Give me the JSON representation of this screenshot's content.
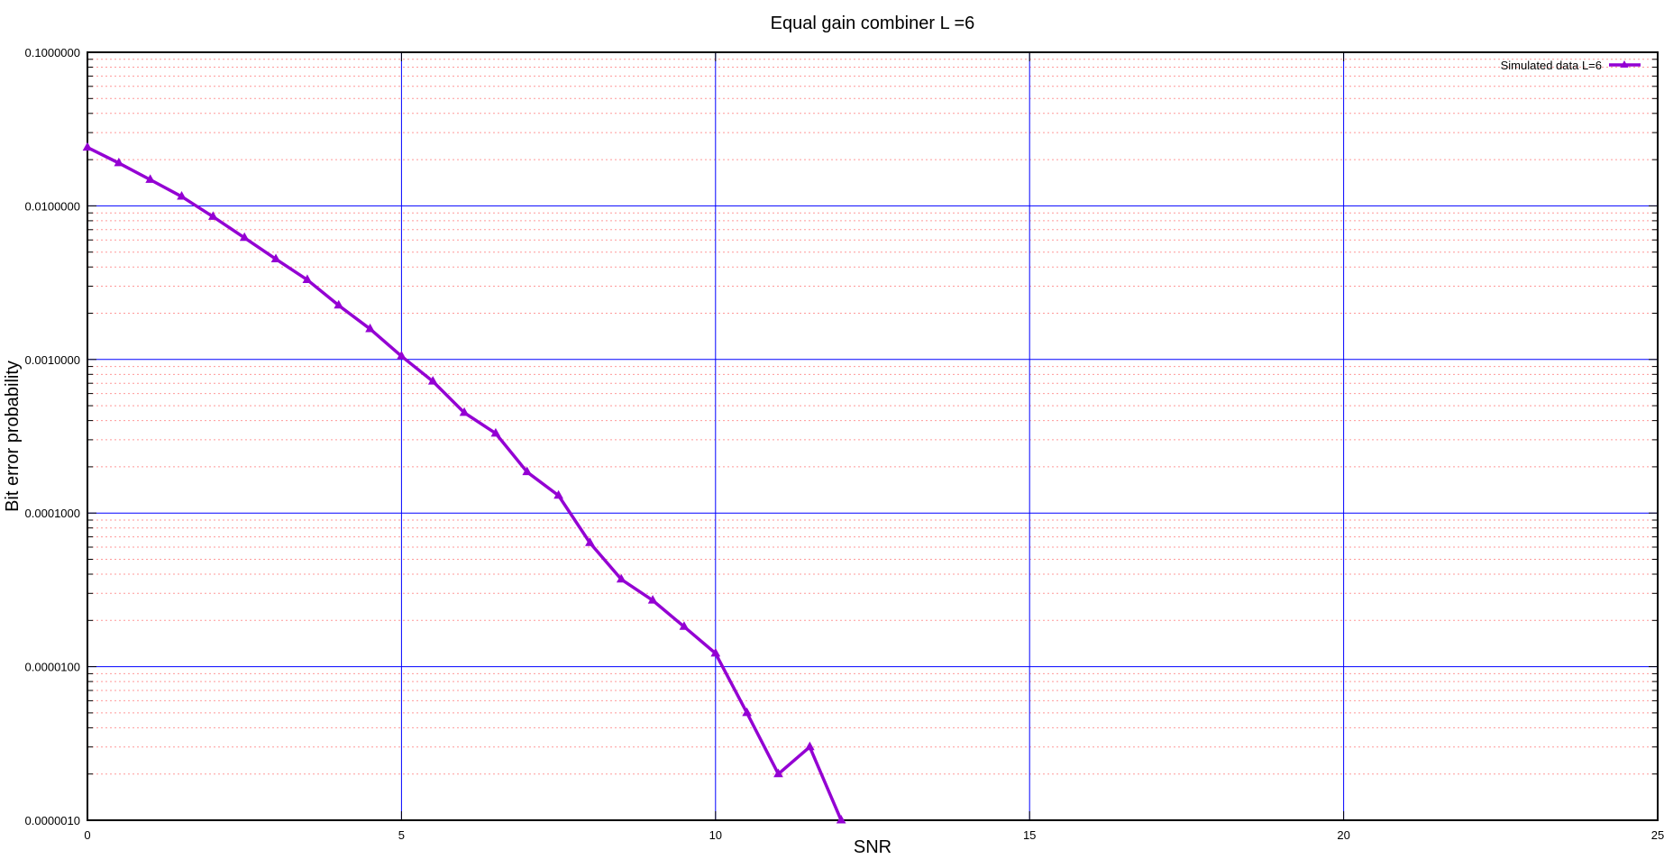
{
  "chart_data": {
    "type": "line",
    "title": "Equal gain combiner L =6",
    "xlabel": "SNR",
    "ylabel": "Bit error probability",
    "xlim": [
      0,
      25
    ],
    "ylim": [
      1e-06,
      0.1
    ],
    "yscale": "log",
    "xticks": [
      0,
      5,
      10,
      15,
      20,
      25
    ],
    "xtick_labels": [
      "0",
      "5",
      "10",
      "15",
      "20",
      "25"
    ],
    "yticks": [
      0.1,
      0.01,
      0.001,
      0.0001,
      1e-05,
      1e-06
    ],
    "ytick_labels": [
      "0.1000000",
      "0.0100000",
      "0.0010000",
      "0.0001000",
      "0.0000100",
      "0.0000010"
    ],
    "grid": {
      "major": true,
      "minor": true,
      "major_color": "#0000ff",
      "minor_color": "#ff9999"
    },
    "legend": {
      "position": "top-right"
    },
    "series": [
      {
        "name": "Simulated data L=6",
        "color": "#9400d3",
        "marker": "triangle",
        "x": [
          0,
          0.5,
          1,
          1.5,
          2,
          2.5,
          3,
          3.5,
          4,
          4.5,
          5,
          5.5,
          6,
          6.5,
          7,
          7.5,
          8,
          8.5,
          9,
          9.5,
          10,
          10.5,
          11,
          11.5,
          12
        ],
        "y": [
          0.024,
          0.019,
          0.0148,
          0.0115,
          0.0085,
          0.0062,
          0.0045,
          0.0033,
          0.00225,
          0.00158,
          0.00105,
          0.00072,
          0.00045,
          0.00033,
          0.000185,
          0.00013,
          6.4e-05,
          3.7e-05,
          2.7e-05,
          1.82e-05,
          1.22e-05,
          5e-06,
          2e-06,
          3e-06,
          1e-06
        ]
      }
    ]
  }
}
